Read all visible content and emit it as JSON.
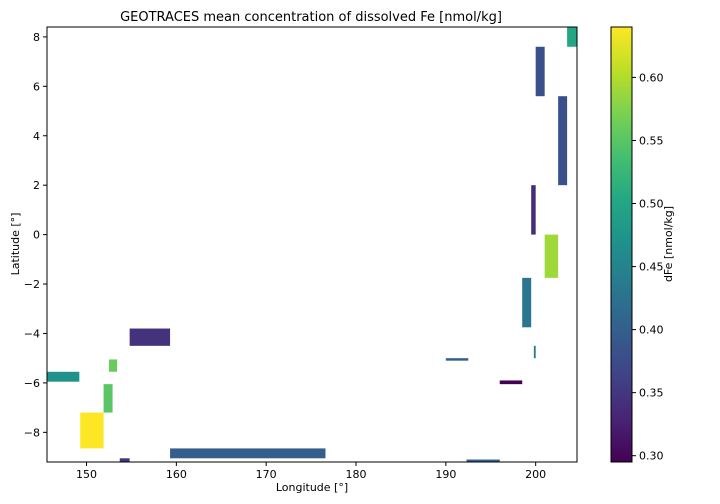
{
  "chart_data": {
    "type": "heatmap",
    "title": "GEOTRACES mean concentration of dissolved Fe [nmol/kg]",
    "xlabel": "Longitude [°]",
    "ylabel": "Latitude [°]",
    "colorbar_label": "dFe [nmol/kg]",
    "colormap": "viridis",
    "xlim": [
      145.6,
      204.6
    ],
    "ylim": [
      -9.2,
      8.4
    ],
    "clim": [
      0.295,
      0.64
    ],
    "x_ticks": [
      150,
      160,
      170,
      180,
      190,
      200
    ],
    "y_ticks": [
      -8,
      -6,
      -4,
      -2,
      0,
      2,
      4,
      6,
      8
    ],
    "colorbar_ticks": [
      0.3,
      0.35,
      0.4,
      0.45,
      0.5,
      0.55,
      0.6
    ],
    "grid": false,
    "cells": [
      {
        "lon": [
          203.5,
          204.6
        ],
        "lat": [
          7.6,
          8.4
        ],
        "value": 0.5
      },
      {
        "lon": [
          200.0,
          201.0
        ],
        "lat": [
          5.6,
          7.6
        ],
        "value": 0.38
      },
      {
        "lon": [
          202.5,
          203.5
        ],
        "lat": [
          2.0,
          5.6
        ],
        "value": 0.38
      },
      {
        "lon": [
          199.5,
          200.0
        ],
        "lat": [
          0.0,
          2.0
        ],
        "value": 0.34
      },
      {
        "lon": [
          201.0,
          202.5
        ],
        "lat": [
          -1.75,
          0.0
        ],
        "value": 0.59
      },
      {
        "lon": [
          198.5,
          199.5
        ],
        "lat": [
          -3.75,
          -1.75
        ],
        "value": 0.43
      },
      {
        "lon": [
          199.8,
          200.0
        ],
        "lat": [
          -5.0,
          -4.5
        ],
        "value": 0.43
      },
      {
        "lon": [
          190.0,
          192.5
        ],
        "lat": [
          -5.1,
          -5.0
        ],
        "value": 0.4
      },
      {
        "lon": [
          196.0,
          198.5
        ],
        "lat": [
          -6.05,
          -5.9
        ],
        "value": 0.295
      },
      {
        "lon": [
          154.8,
          159.3
        ],
        "lat": [
          -4.5,
          -3.8
        ],
        "value": 0.345
      },
      {
        "lon": [
          145.6,
          149.2
        ],
        "lat": [
          -5.95,
          -5.55
        ],
        "value": 0.47
      },
      {
        "lon": [
          152.5,
          153.4
        ],
        "lat": [
          -5.55,
          -5.05
        ],
        "value": 0.56
      },
      {
        "lon": [
          151.9,
          152.9
        ],
        "lat": [
          -7.2,
          -6.05
        ],
        "value": 0.55
      },
      {
        "lon": [
          149.3,
          151.9
        ],
        "lat": [
          -8.65,
          -7.2
        ],
        "value": 0.64
      },
      {
        "lon": [
          159.3,
          176.6
        ],
        "lat": [
          -9.05,
          -8.65
        ],
        "value": 0.4
      },
      {
        "lon": [
          153.7,
          154.8
        ],
        "lat": [
          -9.2,
          -9.05
        ],
        "value": 0.35
      },
      {
        "lon": [
          192.3,
          196.0
        ],
        "lat": [
          -9.2,
          -9.1
        ],
        "value": 0.4
      }
    ]
  }
}
